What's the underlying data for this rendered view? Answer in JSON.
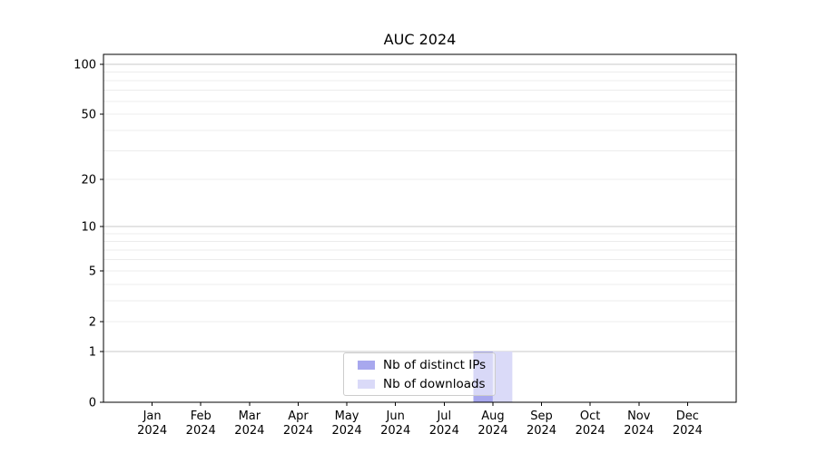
{
  "chart_data": {
    "type": "bar",
    "title": "AUC 2024",
    "categories": [
      "Jan 2024",
      "Feb 2024",
      "Mar 2024",
      "Apr 2024",
      "May 2024",
      "Jun 2024",
      "Jul 2024",
      "Aug 2024",
      "Sep 2024",
      "Oct 2024",
      "Nov 2024",
      "Dec 2024"
    ],
    "series": [
      {
        "name": "Nb of distinct IPs",
        "color": "#a8a8ee",
        "values": [
          0,
          0,
          0,
          0,
          0,
          0,
          0,
          1,
          0,
          0,
          0,
          0
        ]
      },
      {
        "name": "Nb of downloads",
        "color": "#dadaf8",
        "values": [
          0,
          0,
          0,
          0,
          0,
          0,
          0,
          1,
          0,
          0,
          0,
          0
        ]
      }
    ],
    "xlabel": "",
    "ylabel": "",
    "y_axis": {
      "scale": "log1p",
      "tick_values": [
        100,
        50,
        20,
        10,
        5,
        2,
        1,
        0
      ],
      "ylim": [
        0,
        115
      ]
    },
    "grid": {
      "horizontal": true,
      "vertical": false,
      "major_color": "#c9c9c9",
      "minor_color": "#ececec"
    },
    "legend": {
      "position": "inside-bottom-center",
      "entries": [
        "Nb of distinct IPs",
        "Nb of downloads"
      ]
    },
    "frame_color": "#000000",
    "background_color": "#ffffff"
  }
}
